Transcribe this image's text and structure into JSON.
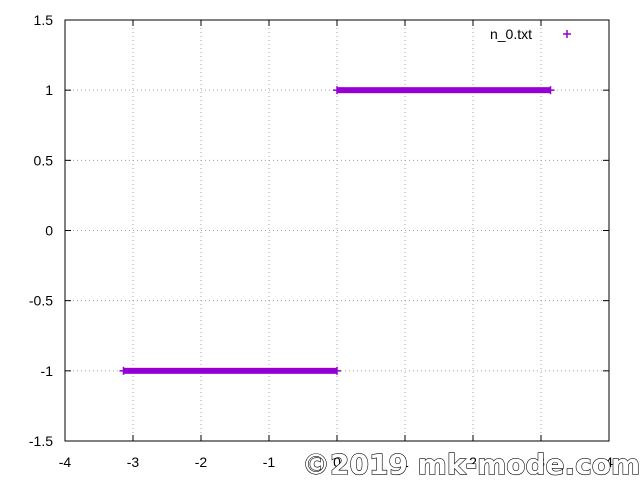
{
  "chart_data": {
    "type": "scatter",
    "xlim": [
      -4,
      4
    ],
    "ylim": [
      -1.5,
      1.5
    ],
    "x_ticks": [
      -4,
      -3,
      -2,
      -1,
      0,
      1,
      2,
      3,
      4
    ],
    "y_ticks": [
      -1.5,
      -1,
      -0.5,
      0,
      0.5,
      1,
      1.5
    ],
    "x_tick_labels": [
      "-4",
      "-3",
      "-2",
      "-1",
      "0",
      "1",
      "2",
      "3",
      "4"
    ],
    "y_tick_labels": [
      "-1.5",
      "-1",
      "-0.5",
      "0",
      "0.5",
      "1",
      "1.5"
    ],
    "grid": true,
    "legend_position": "top-right",
    "series": [
      {
        "name": "n_0.txt",
        "marker": "+",
        "color": "#9400d3",
        "segments": [
          {
            "x_start": -3.14,
            "x_end": 0.0,
            "y": -1
          },
          {
            "x_start": 0.0,
            "x_end": 3.14,
            "y": 1
          }
        ]
      }
    ]
  },
  "watermark": {
    "text": "©2019 mk-mode.com"
  }
}
